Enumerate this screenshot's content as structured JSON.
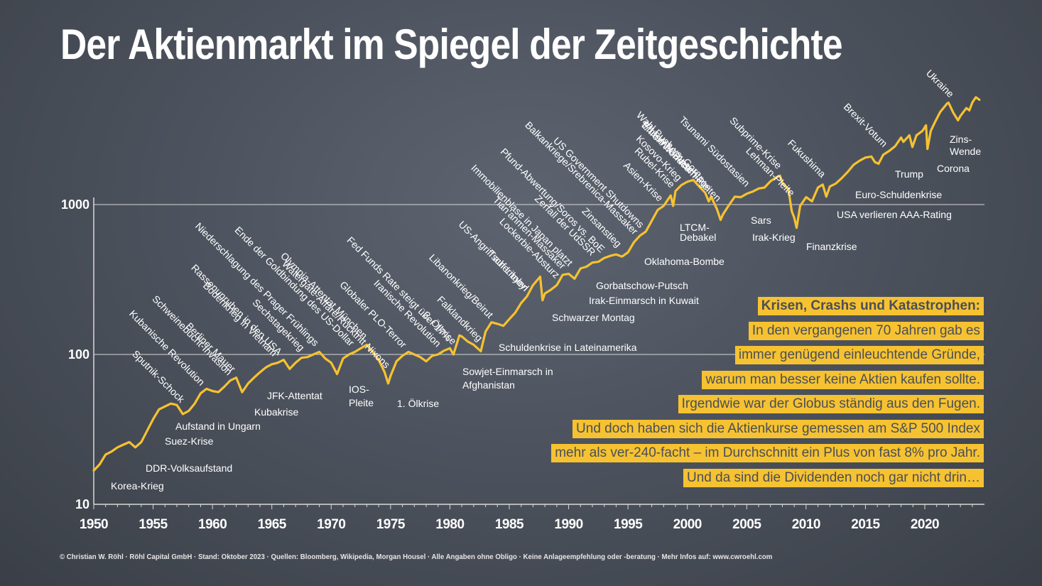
{
  "title": "Der Aktienmarkt im Spiegel der Zeitgeschichte",
  "footer": "© Christian W. Röhl · Röhl Capital GmbH · Stand: Oktober 2023 · Quellen: Bloomberg, Wikipedia, Morgan Housel · Alle Angaben ohne Obligo · Keine Anlageempfehlung oder -beratung · Mehr Infos auf: www.cwroehl.com",
  "textbox": {
    "heading": "Krisen, Crashs und Katastrophen:",
    "lines": [
      "In den vergangenen 70 Jahren gab es",
      "immer genügend einleuchtende Gründe,",
      "warum man besser keine Aktien kaufen sollte.",
      "Irgendwie war der Globus ständig aus den Fugen.",
      "Und doch haben sich die Aktienkurse gemessen am S&P 500 Index",
      "mehr als ver-240-facht – im Durchschnitt ein Plus von fast 8% pro Jahr.",
      "Und da sind die Dividenden noch gar nicht drin…"
    ]
  },
  "colors": {
    "line": "#f6c231",
    "background": "#4d535e",
    "grid": "#d8d8d8",
    "text": "#ffffff"
  },
  "chart_data": {
    "type": "line",
    "scale_y": "log",
    "ylim": [
      10,
      6000
    ],
    "xlim": [
      1950,
      2024.8
    ],
    "xticks": [
      "1950",
      "1955",
      "1960",
      "1965",
      "1970",
      "1975",
      "1980",
      "1985",
      "1990",
      "1995",
      "2000",
      "2005",
      "2010",
      "2015",
      "2020"
    ],
    "yticks": [
      "10",
      "100",
      "1000"
    ],
    "grid": "horizontal lines at 100 and 1000",
    "series": [
      {
        "points": [
          [
            1950.0,
            16.8
          ],
          [
            1950.5,
            18.5
          ],
          [
            1951.0,
            21.5
          ],
          [
            1951.5,
            22.5
          ],
          [
            1952.0,
            24
          ],
          [
            1952.5,
            25
          ],
          [
            1953.0,
            26
          ],
          [
            1953.5,
            24
          ],
          [
            1954.0,
            26
          ],
          [
            1954.5,
            31
          ],
          [
            1955.0,
            37
          ],
          [
            1955.5,
            43
          ],
          [
            1956.0,
            45
          ],
          [
            1956.5,
            47
          ],
          [
            1957.0,
            46
          ],
          [
            1957.5,
            40
          ],
          [
            1958.0,
            42
          ],
          [
            1958.5,
            47
          ],
          [
            1959.0,
            55
          ],
          [
            1959.5,
            59
          ],
          [
            1960.0,
            57
          ],
          [
            1960.5,
            56
          ],
          [
            1961.0,
            61
          ],
          [
            1961.5,
            67
          ],
          [
            1962.0,
            70
          ],
          [
            1962.5,
            56
          ],
          [
            1963.0,
            64
          ],
          [
            1963.5,
            70
          ],
          [
            1964.0,
            76
          ],
          [
            1964.5,
            82
          ],
          [
            1965.0,
            86
          ],
          [
            1965.5,
            88
          ],
          [
            1966.0,
            92
          ],
          [
            1966.5,
            80
          ],
          [
            1967.0,
            88
          ],
          [
            1967.5,
            95
          ],
          [
            1968.0,
            96
          ],
          [
            1968.5,
            100
          ],
          [
            1969.0,
            104
          ],
          [
            1969.5,
            94
          ],
          [
            1970.0,
            88
          ],
          [
            1970.5,
            74
          ],
          [
            1971.0,
            94
          ],
          [
            1971.5,
            100
          ],
          [
            1972.0,
            104
          ],
          [
            1972.5,
            110
          ],
          [
            1973.0,
            116
          ],
          [
            1973.5,
            104
          ],
          [
            1974.0,
            92
          ],
          [
            1974.5,
            76
          ],
          [
            1974.8,
            64
          ],
          [
            1975.0,
            72
          ],
          [
            1975.5,
            90
          ],
          [
            1976.0,
            98
          ],
          [
            1976.5,
            104
          ],
          [
            1977.0,
            100
          ],
          [
            1977.5,
            96
          ],
          [
            1978.0,
            90
          ],
          [
            1978.5,
            98
          ],
          [
            1979.0,
            100
          ],
          [
            1979.5,
            106
          ],
          [
            1980.0,
            110
          ],
          [
            1980.3,
            100
          ],
          [
            1980.8,
            134
          ],
          [
            1981.0,
            132
          ],
          [
            1981.5,
            122
          ],
          [
            1982.0,
            116
          ],
          [
            1982.6,
            105
          ],
          [
            1983.0,
            142
          ],
          [
            1983.5,
            164
          ],
          [
            1984.0,
            160
          ],
          [
            1984.5,
            155
          ],
          [
            1985.0,
            172
          ],
          [
            1985.5,
            190
          ],
          [
            1986.0,
            220
          ],
          [
            1986.5,
            245
          ],
          [
            1987.0,
            290
          ],
          [
            1987.6,
            330
          ],
          [
            1987.8,
            230
          ],
          [
            1988.0,
            255
          ],
          [
            1988.5,
            270
          ],
          [
            1989.0,
            290
          ],
          [
            1989.5,
            340
          ],
          [
            1990.0,
            345
          ],
          [
            1990.5,
            320
          ],
          [
            1991.0,
            375
          ],
          [
            1991.5,
            385
          ],
          [
            1992.0,
            410
          ],
          [
            1992.5,
            415
          ],
          [
            1993.0,
            440
          ],
          [
            1993.5,
            455
          ],
          [
            1994.0,
            465
          ],
          [
            1994.5,
            450
          ],
          [
            1995.0,
            480
          ],
          [
            1995.5,
            560
          ],
          [
            1996.0,
            620
          ],
          [
            1996.5,
            660
          ],
          [
            1997.0,
            780
          ],
          [
            1997.5,
            920
          ],
          [
            1998.0,
            980
          ],
          [
            1998.6,
            1150
          ],
          [
            1998.8,
            980
          ],
          [
            1999.0,
            1230
          ],
          [
            1999.5,
            1350
          ],
          [
            2000.0,
            1420
          ],
          [
            2000.5,
            1460
          ],
          [
            2001.0,
            1320
          ],
          [
            2001.5,
            1200
          ],
          [
            2001.8,
            1050
          ],
          [
            2002.0,
            1130
          ],
          [
            2002.5,
            930
          ],
          [
            2002.8,
            790
          ],
          [
            2003.0,
            860
          ],
          [
            2003.5,
            990
          ],
          [
            2004.0,
            1130
          ],
          [
            2004.5,
            1120
          ],
          [
            2005.0,
            1180
          ],
          [
            2005.5,
            1220
          ],
          [
            2006.0,
            1280
          ],
          [
            2006.5,
            1300
          ],
          [
            2007.0,
            1430
          ],
          [
            2007.5,
            1520
          ],
          [
            2007.8,
            1560
          ],
          [
            2008.0,
            1400
          ],
          [
            2008.5,
            1270
          ],
          [
            2008.8,
            900
          ],
          [
            2009.0,
            820
          ],
          [
            2009.2,
            700
          ],
          [
            2009.5,
            980
          ],
          [
            2010.0,
            1120
          ],
          [
            2010.5,
            1050
          ],
          [
            2011.0,
            1300
          ],
          [
            2011.4,
            1360
          ],
          [
            2011.7,
            1130
          ],
          [
            2012.0,
            1320
          ],
          [
            2012.5,
            1380
          ],
          [
            2013.0,
            1500
          ],
          [
            2013.5,
            1650
          ],
          [
            2014.0,
            1840
          ],
          [
            2014.5,
            1960
          ],
          [
            2015.0,
            2060
          ],
          [
            2015.5,
            2090
          ],
          [
            2015.8,
            1920
          ],
          [
            2016.1,
            1870
          ],
          [
            2016.5,
            2150
          ],
          [
            2017.0,
            2280
          ],
          [
            2017.5,
            2450
          ],
          [
            2018.0,
            2800
          ],
          [
            2018.2,
            2620
          ],
          [
            2018.7,
            2900
          ],
          [
            2018.95,
            2420
          ],
          [
            2019.3,
            2900
          ],
          [
            2019.8,
            3100
          ],
          [
            2020.1,
            3380
          ],
          [
            2020.22,
            2350
          ],
          [
            2020.5,
            3100
          ],
          [
            2020.9,
            3600
          ],
          [
            2021.3,
            4150
          ],
          [
            2021.9,
            4750
          ],
          [
            2022.0,
            4780
          ],
          [
            2022.4,
            4100
          ],
          [
            2022.8,
            3650
          ],
          [
            2023.0,
            3900
          ],
          [
            2023.5,
            4400
          ],
          [
            2023.75,
            4250
          ],
          [
            2024.0,
            4800
          ],
          [
            2024.3,
            5200
          ],
          [
            2024.6,
            5000
          ]
        ]
      }
    ],
    "annotations_below": [
      {
        "text": "Korea-Krieg",
        "x": 1950.5
      },
      {
        "text": "DDR-Volksaufstand",
        "x": 1953.5
      },
      {
        "text": "Suez-Krise",
        "x": 1956.8
      },
      {
        "text": "Aufstand in Ungarn",
        "x": 1956.9
      },
      {
        "text": "Kubakrise",
        "x": 1962.5
      },
      {
        "text": "JFK-Attentat",
        "x": 1963.9
      },
      {
        "text": "IOS-",
        "x": 1970.5
      },
      {
        "text": "Pleite",
        "x": 1970.5
      },
      {
        "text": "1. Ölkrise",
        "x": 1974.5
      },
      {
        "text": "Sowjet-Einmarsch in",
        "x": 1980.0
      },
      {
        "text": "Afghanistan",
        "x": 1980.0
      },
      {
        "text": "Schuldenkrise in Lateinamerika",
        "x": 1982.5
      },
      {
        "text": "Schwarzer Montag",
        "x": 1987.8
      },
      {
        "text": "Irak-Einmarsch in Kuwait",
        "x": 1990.6
      },
      {
        "text": "Gorbatschow-Putsch",
        "x": 1991.6
      },
      {
        "text": "Oklahoma-Bombe",
        "x": 1995.3
      },
      {
        "text": "LTCM-",
        "x": 1998.7
      },
      {
        "text": "Debakel",
        "x": 1998.7
      },
      {
        "text": "Sars",
        "x": 2002.9
      },
      {
        "text": "Irak-Krieg",
        "x": 2003.2
      },
      {
        "text": "Finanzkrise",
        "x": 2009.0
      },
      {
        "text": "USA verlieren AAA-Rating",
        "x": 2011.7
      },
      {
        "text": "Euro-Schuldenkrise",
        "x": 2011.9
      },
      {
        "text": "Trump",
        "x": 2016.9
      },
      {
        "text": "Corona",
        "x": 2020.2
      },
      {
        "text": "Zins-",
        "x": 2022.3
      },
      {
        "text": "Wende",
        "x": 2022.3
      }
    ],
    "annotations_diagonal": [
      {
        "text": "Sputnik-Schock",
        "x": 1957.3
      },
      {
        "text": "Kubanische Revolution",
        "x": 1959.0
      },
      {
        "text": "Schweinebucht-Invasion",
        "x": 1961.3
      },
      {
        "text": "Berliner Mauer",
        "x": 1961.6
      },
      {
        "text": "Bodenkrieg in Vietnam",
        "x": 1965.1
      },
      {
        "text": "Rassenunruhen in den USA",
        "x": 1965.5
      },
      {
        "text": "Sechstagekrieg",
        "x": 1967.4
      },
      {
        "text": "Niederschlagung des Prager Frühlings",
        "x": 1968.6
      },
      {
        "text": "Ende der Goldbindung des US-Dollar",
        "x": 1971.6
      },
      {
        "text": "Olympia-Attentat München",
        "x": 1972.7
      },
      {
        "text": "Watergate-Affäre/Rücktritt Nixons",
        "x": 1974.6
      },
      {
        "text": "Globaler PLO-Terror",
        "x": 1976.0
      },
      {
        "text": "Iranische Revolution",
        "x": 1978.9
      },
      {
        "text": "Fed Funds Rate steigt über 17%",
        "x": 1979.8
      },
      {
        "text": "2. Ölkrise",
        "x": 1980.2
      },
      {
        "text": "Falklandkrieg",
        "x": 1982.4
      },
      {
        "text": "Libanonkrieg/Beirut",
        "x": 1983.3
      },
      {
        "text": "Tschernobyl",
        "x": 1986.3
      },
      {
        "text": "US-Angriff auf Libyen",
        "x": 1986.3
      },
      {
        "text": "Lockerbie-Absturz",
        "x": 1988.9
      },
      {
        "text": "Tian'anmen-Massaker",
        "x": 1989.4
      },
      {
        "text": "Immobilienblase in Japan platzt",
        "x": 1990.0
      },
      {
        "text": "Zerfall der UdSSR",
        "x": 1991.9
      },
      {
        "text": "Pfund-Abwertung/Soros vs. BoE",
        "x": 1992.7
      },
      {
        "text": "Balkankriege/Srebrenica-Massaker",
        "x": 1995.5
      },
      {
        "text": "Zinsanstieg",
        "x": 1994.1
      },
      {
        "text": "US Government Shutdowns",
        "x": 1996.0
      },
      {
        "text": "Asien-Krise",
        "x": 1997.6
      },
      {
        "text": "Rubel-Krise",
        "x": 1998.6
      },
      {
        "text": "Kosovo-Krieg",
        "x": 1999.2
      },
      {
        "text": "Wahl Bush vs. Gore",
        "x": 2000.9
      },
      {
        "text": "Internet-Blase",
        "x": 2000.2
      },
      {
        "text": "9/11 WTC-Anschläge",
        "x": 2001.7
      },
      {
        "text": "Enron/Worldcom-Pleiten",
        "x": 2002.5
      },
      {
        "text": "Tsunami Südostasien",
        "x": 2004.9
      },
      {
        "text": "Subprime-Krise",
        "x": 2007.6
      },
      {
        "text": "Lehman-Pleite",
        "x": 2008.7
      },
      {
        "text": "Fukushima",
        "x": 2011.3
      },
      {
        "text": "Brexit-Votum",
        "x": 2016.5
      },
      {
        "text": "Ukraine",
        "x": 2022.1
      }
    ]
  }
}
